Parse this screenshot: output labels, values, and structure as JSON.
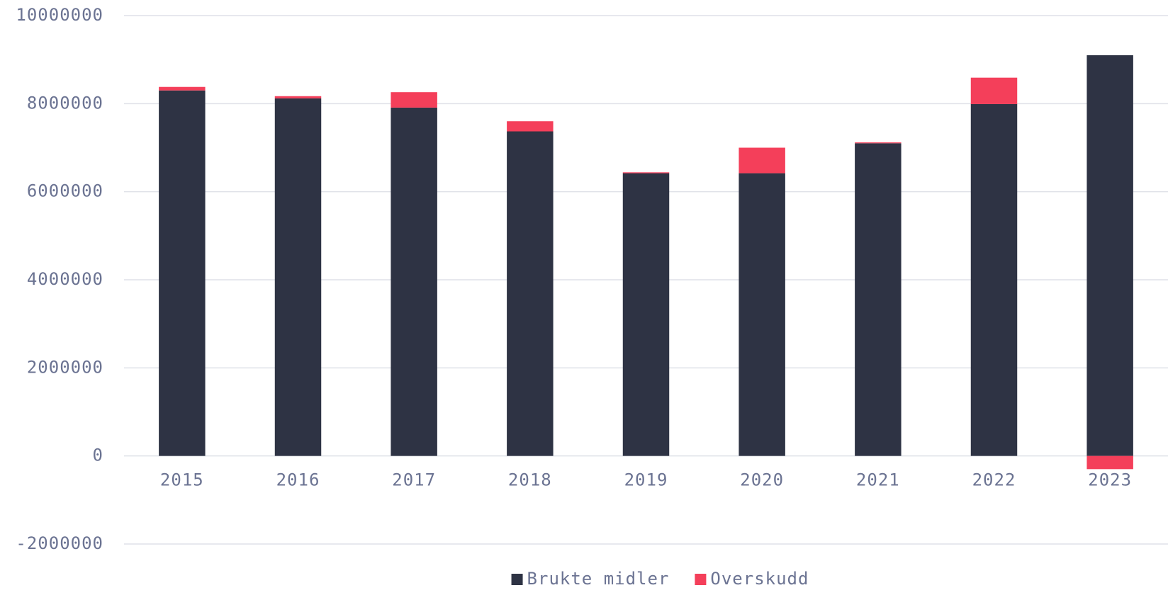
{
  "chart_data": {
    "type": "stacked_bar",
    "categories": [
      "2015",
      "2016",
      "2017",
      "2018",
      "2019",
      "2020",
      "2021",
      "2022",
      "2023"
    ],
    "series": [
      {
        "name": "Brukte midler",
        "color": "#2e3344",
        "values": [
          8300000,
          8120000,
          7910000,
          7370000,
          6420000,
          6420000,
          7100000,
          7990000,
          9100000
        ]
      },
      {
        "name": "Overskudd",
        "color": "#f43f5a",
        "values": [
          80000,
          50000,
          350000,
          230000,
          20000,
          580000,
          20000,
          600000,
          -300000
        ]
      }
    ],
    "ylim": [
      -2000000,
      10000000
    ],
    "yticks": [
      -2000000,
      0,
      2000000,
      4000000,
      6000000,
      8000000,
      10000000
    ],
    "grid": true,
    "legend": "bottom"
  }
}
